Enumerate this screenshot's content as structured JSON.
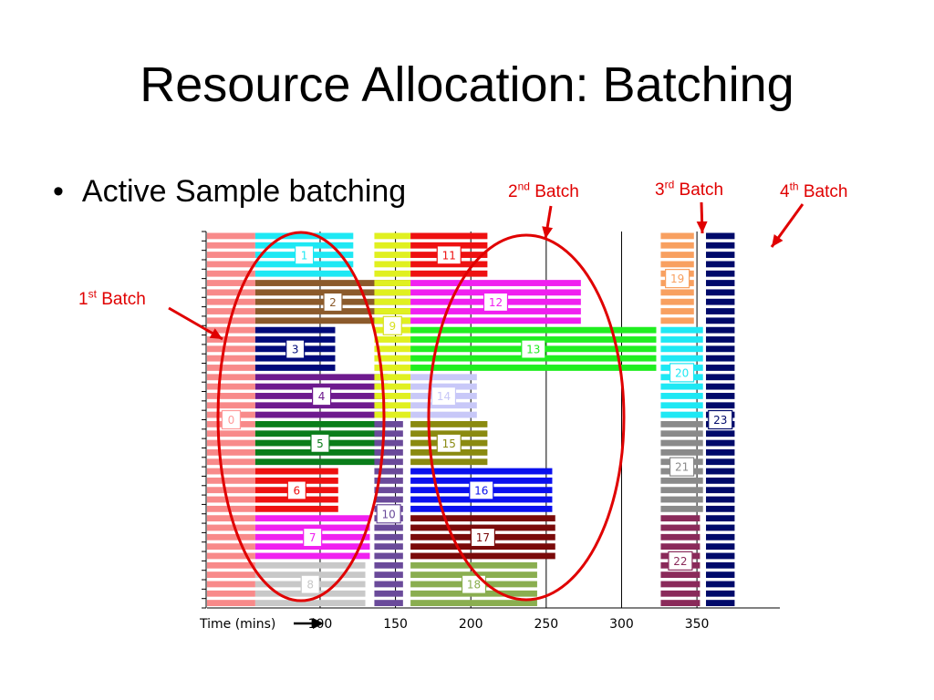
{
  "slide": {
    "title": "Resource Allocation: Batching",
    "bullet": "Active Sample batching"
  },
  "batches": [
    {
      "ord": "1",
      "sup": "st",
      "word": "Batch"
    },
    {
      "ord": "2",
      "sup": "nd",
      "word": "Batch"
    },
    {
      "ord": "3",
      "sup": "rd",
      "word": "Batch"
    },
    {
      "ord": "4",
      "sup": "th",
      "word": "Batch"
    }
  ],
  "colors": {
    "annotation": "#e00000"
  },
  "chart_data": {
    "type": "gantt",
    "xlabel": "Time (mins)",
    "xticks": [
      100,
      150,
      200,
      250,
      300,
      350
    ],
    "xlim": [
      25,
      405
    ],
    "row_count": 40,
    "grid": "vertical",
    "tasks": [
      {
        "id": "0",
        "start": 25,
        "end": 57,
        "rows": [
          0,
          39
        ],
        "color": "#f88a8a",
        "box": "#ff9a9a"
      },
      {
        "id": "1",
        "start": 57,
        "end": 122,
        "rows": [
          0,
          4
        ],
        "color": "#1ee8f4",
        "box": "#1ee8f4"
      },
      {
        "id": "2",
        "start": 57,
        "end": 160,
        "rows": [
          5,
          9
        ],
        "color": "#8b5a2b",
        "box": "#8b5a2b"
      },
      {
        "id": "3",
        "start": 57,
        "end": 110,
        "rows": [
          10,
          14
        ],
        "color": "#000a7a",
        "box": "#000a7a"
      },
      {
        "id": "4",
        "start": 57,
        "end": 145,
        "rows": [
          15,
          19
        ],
        "color": "#6e1a8e",
        "box": "#6e1a8e"
      },
      {
        "id": "5",
        "start": 57,
        "end": 143,
        "rows": [
          20,
          24
        ],
        "color": "#0a7d1a",
        "box": "#0a7d1a"
      },
      {
        "id": "6",
        "start": 57,
        "end": 112,
        "rows": [
          25,
          29
        ],
        "color": "#ee1111",
        "box": "#ee1111"
      },
      {
        "id": "7",
        "start": 57,
        "end": 133,
        "rows": [
          30,
          34
        ],
        "color": "#f020f0",
        "box": "#f020f0"
      },
      {
        "id": "8",
        "start": 57,
        "end": 130,
        "rows": [
          35,
          39
        ],
        "color": "#c8c8c8",
        "box": "#c8c8c8"
      },
      {
        "id": "9",
        "start": 136,
        "end": 160,
        "rows": [
          0,
          19
        ],
        "color": "#e0f020",
        "box": "#d8e020"
      },
      {
        "id": "10",
        "start": 136,
        "end": 155,
        "rows": [
          20,
          39
        ],
        "color": "#6a4a9a",
        "box": "#6a4a9a"
      },
      {
        "id": "11",
        "start": 160,
        "end": 211,
        "rows": [
          0,
          4
        ],
        "color": "#ee1111",
        "box": "#ee1111"
      },
      {
        "id": "12",
        "start": 160,
        "end": 273,
        "rows": [
          5,
          9
        ],
        "color": "#f020f0",
        "box": "#f020f0"
      },
      {
        "id": "13",
        "start": 160,
        "end": 323,
        "rows": [
          10,
          14
        ],
        "color": "#20ee20",
        "box": "#20ee20"
      },
      {
        "id": "14",
        "start": 160,
        "end": 204,
        "rows": [
          15,
          19
        ],
        "color": "#c8c8f8",
        "box": "#c8c8f8"
      },
      {
        "id": "15",
        "start": 160,
        "end": 211,
        "rows": [
          20,
          24
        ],
        "color": "#8a8a10",
        "box": "#8a8a10"
      },
      {
        "id": "16",
        "start": 160,
        "end": 254,
        "rows": [
          25,
          29
        ],
        "color": "#0a10ee",
        "box": "#0a10ee"
      },
      {
        "id": "17",
        "start": 160,
        "end": 256,
        "rows": [
          30,
          34
        ],
        "color": "#7a0a0a",
        "box": "#7a0a0a"
      },
      {
        "id": "18",
        "start": 160,
        "end": 244,
        "rows": [
          35,
          39
        ],
        "color": "#8aae50",
        "box": "#8aae50"
      },
      {
        "id": "19",
        "start": 326,
        "end": 348,
        "rows": [
          0,
          9
        ],
        "color": "#f8a060",
        "box": "#f8a060"
      },
      {
        "id": "20",
        "start": 326,
        "end": 354,
        "rows": [
          10,
          19
        ],
        "color": "#1ee8f4",
        "box": "#1ee8f4"
      },
      {
        "id": "21",
        "start": 326,
        "end": 354,
        "rows": [
          20,
          29
        ],
        "color": "#8a8a8a",
        "box": "#8a8a8a"
      },
      {
        "id": "22",
        "start": 326,
        "end": 352,
        "rows": [
          30,
          39
        ],
        "color": "#8a2a5a",
        "box": "#8a2a5a"
      },
      {
        "id": "23",
        "start": 356,
        "end": 375,
        "rows": [
          0,
          39
        ],
        "color": "#000a6a",
        "box": "#000a6a"
      }
    ]
  }
}
